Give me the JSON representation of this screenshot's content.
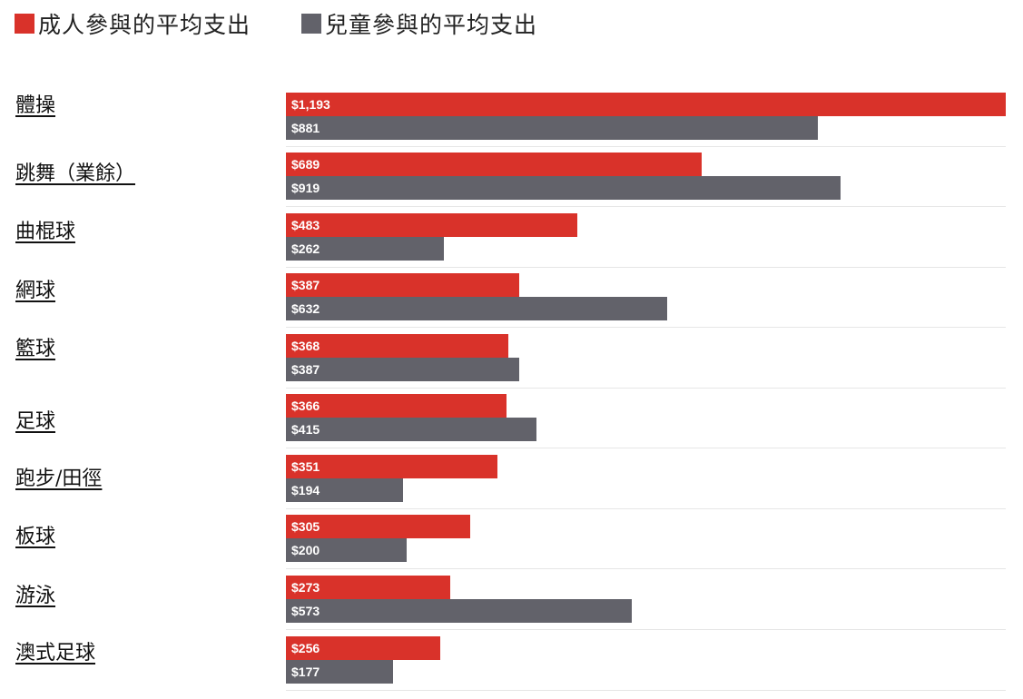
{
  "legend": {
    "adult_label": "成人參與的平均支出",
    "child_label": "兒童參與的平均支出",
    "adult_color": "#D9322A",
    "child_color": "#62626A"
  },
  "chart_data": {
    "type": "bar",
    "orientation": "horizontal",
    "title": "",
    "xlabel": "",
    "ylabel": "",
    "grid": false,
    "legend_position": "top-left",
    "categories": [
      "體操",
      "跳舞（業餘）",
      "曲棍球",
      "網球",
      "籃球",
      "足球",
      "跑步/田徑",
      "板球",
      "游泳",
      "澳式足球"
    ],
    "series": [
      {
        "name": "成人參與的平均支出",
        "color": "#D9322A",
        "values": [
          1193,
          689,
          483,
          387,
          368,
          366,
          351,
          305,
          273,
          256
        ],
        "labels": [
          "$1,193",
          "$689",
          "$483",
          "$387",
          "$368",
          "$366",
          "$351",
          "$305",
          "$273",
          "$256"
        ]
      },
      {
        "name": "兒童參與的平均支出",
        "color": "#62626A",
        "values": [
          881,
          919,
          262,
          632,
          387,
          415,
          194,
          200,
          573,
          177
        ],
        "labels": [
          "$881",
          "$919",
          "$262",
          "$632",
          "$387",
          "$415",
          "$194",
          "$200",
          "$573",
          "$177"
        ]
      }
    ],
    "xlim": [
      0,
      1193
    ]
  }
}
